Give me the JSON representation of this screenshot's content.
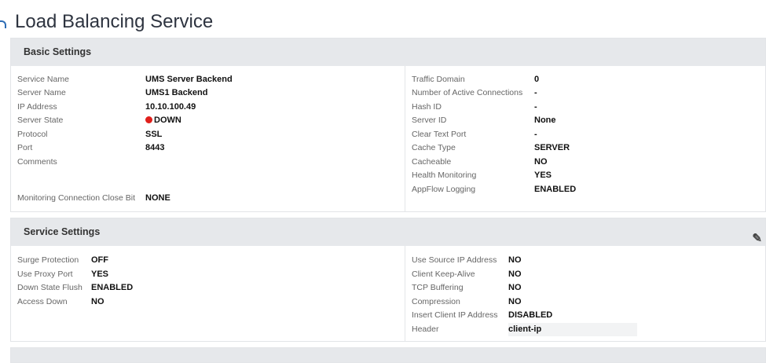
{
  "page": {
    "title": "Load Balancing Service"
  },
  "basic": {
    "title": "Basic Settings",
    "left": [
      {
        "label": "Service Name",
        "value": "UMS Server Backend"
      },
      {
        "label": "Server Name",
        "value": "UMS1 Backend"
      },
      {
        "label": "IP Address",
        "value": "10.10.100.49"
      },
      {
        "label": "Server State",
        "value": "DOWN",
        "status_color": "#e0201c"
      },
      {
        "label": "Protocol",
        "value": "SSL"
      },
      {
        "label": "Port",
        "value": "8443"
      },
      {
        "label": "Comments",
        "value": ""
      },
      {
        "label": "Monitoring Connection Close Bit",
        "value": "NONE"
      }
    ],
    "right": [
      {
        "label": "Traffic Domain",
        "value": "0"
      },
      {
        "label": "Number of Active Connections",
        "value": "-"
      },
      {
        "label": "Hash ID",
        "value": "-"
      },
      {
        "label": "Server ID",
        "value": "None"
      },
      {
        "label": "Clear Text Port",
        "value": "-"
      },
      {
        "label": "Cache Type",
        "value": "SERVER"
      },
      {
        "label": "Cacheable",
        "value": "NO"
      },
      {
        "label": "Health Monitoring",
        "value": "YES"
      },
      {
        "label": "AppFlow Logging",
        "value": "ENABLED"
      }
    ]
  },
  "service": {
    "title": "Service Settings",
    "edit_icon": "pencil-icon",
    "left": [
      {
        "label": "Surge Protection",
        "value": "OFF"
      },
      {
        "label": "Use Proxy Port",
        "value": "YES"
      },
      {
        "label": "Down State Flush",
        "value": "ENABLED"
      },
      {
        "label": "Access Down",
        "value": "NO"
      }
    ],
    "right": [
      {
        "label": "Use Source IP Address",
        "value": "NO"
      },
      {
        "label": "Client Keep-Alive",
        "value": "NO"
      },
      {
        "label": "TCP Buffering",
        "value": "NO"
      },
      {
        "label": "Compression",
        "value": "NO"
      },
      {
        "label": "Insert Client IP Address",
        "value": "DISABLED"
      },
      {
        "label": "Header",
        "value": "client-ip"
      }
    ]
  }
}
